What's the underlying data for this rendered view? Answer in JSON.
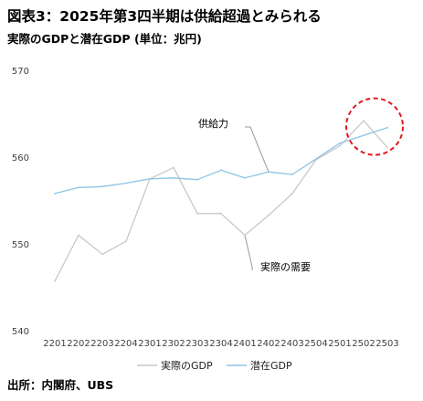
{
  "title": "図表3：2025年第3四半期は供給超過とみられる",
  "subtitle": "実際のGDPと潜在GDP (単位：兆円)",
  "source": "出所：内閣府、UBS",
  "chart_data": {
    "type": "line",
    "categories": [
      "2201",
      "2202",
      "2203",
      "2204",
      "2301",
      "2302",
      "2303",
      "2304",
      "2401",
      "2402",
      "2403",
      "2504",
      "2501",
      "2502",
      "2503"
    ],
    "ylim": [
      540,
      570
    ],
    "yticks": [
      540,
      550,
      560,
      570
    ],
    "grid": false,
    "legend_position": "bottom",
    "series": [
      {
        "name": "実際のGDP",
        "color": "#c8c8c8",
        "values": [
          545.7,
          551.0,
          548.8,
          550.3,
          557.5,
          558.8,
          553.5,
          553.5,
          551.0,
          553.3,
          555.8,
          559.7,
          561.3,
          564.2,
          561.1
        ]
      },
      {
        "name": "潜在GDP",
        "color": "#8ec3e6",
        "values": [
          555.8,
          556.5,
          556.6,
          557.0,
          557.5,
          557.6,
          557.4,
          558.5,
          557.6,
          558.3,
          558.0,
          559.8,
          561.6,
          562.5,
          563.4
        ]
      }
    ],
    "annotations": [
      {
        "text": "供給力",
        "series_index": 1,
        "point_index": 9
      },
      {
        "text": "実際の需要",
        "series_index": 0,
        "point_index": 8
      }
    ],
    "highlight_point_index": 14,
    "highlight_color": "#e0191f"
  }
}
